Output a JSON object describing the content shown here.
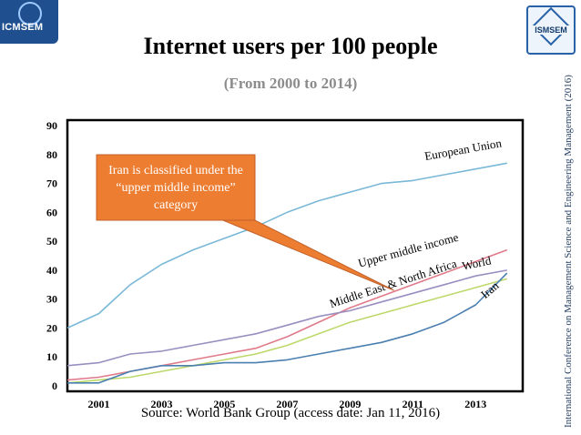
{
  "header": {
    "title": "Internet users per 100 people",
    "subtitle": "(From 2000 to 2014)",
    "left_logo_text": "ICMSEM",
    "right_logo_text": "ISMSEM"
  },
  "side_note": "International Conference on Management Science and Engineering Management (2016)",
  "source": "Source: World Bank Group (access date: Jan 11, 2016)",
  "callout": {
    "text": "Iran is classified under the “upper middle income” category",
    "color": "#ed7d31"
  },
  "chart_data": {
    "type": "line",
    "title": "Internet users per 100 people",
    "subtitle": "(From 2000 to 2014)",
    "xlabel": "",
    "ylabel": "",
    "xlim": [
      2000,
      2014.5
    ],
    "ylim": [
      0,
      90
    ],
    "x_ticks": [
      2001,
      2003,
      2005,
      2007,
      2009,
      2011,
      2013
    ],
    "x_tick_labels": [
      "2001",
      "2003",
      "2005",
      "2007",
      "2009",
      "2011",
      "2013"
    ],
    "y_ticks": [
      0,
      10,
      20,
      30,
      40,
      50,
      60,
      70,
      80,
      90
    ],
    "y_tick_labels": [
      "0",
      "10",
      "20",
      "30",
      "40",
      "50",
      "60",
      "70",
      "80",
      "90"
    ],
    "grid": false,
    "legend": "inline labels at line ends",
    "x": [
      2000,
      2001,
      2002,
      2003,
      2004,
      2005,
      2006,
      2007,
      2008,
      2009,
      2010,
      2011,
      2012,
      2013,
      2014
    ],
    "series": [
      {
        "name": "European Union",
        "color": "#7ab8d8",
        "values": [
          20,
          25,
          35,
          42,
          47,
          51,
          55,
          60,
          64,
          67,
          70,
          71,
          73,
          75,
          77
        ]
      },
      {
        "name": "Upper middle income",
        "color": "#e07a8a",
        "values": [
          2,
          3,
          5,
          7,
          9,
          11,
          13,
          17,
          22,
          27,
          31,
          35,
          39,
          43,
          47
        ]
      },
      {
        "name": "World",
        "color": "#9a8fc0",
        "values": [
          7,
          8,
          11,
          12,
          14,
          16,
          18,
          21,
          24,
          26,
          29,
          32,
          35,
          38,
          40
        ]
      },
      {
        "name": "Middle East & North Africa",
        "color": "#bcd96a",
        "values": [
          1,
          2,
          3,
          5,
          7,
          9,
          11,
          14,
          18,
          22,
          25,
          28,
          31,
          34,
          37
        ]
      },
      {
        "name": "Iran",
        "color": "#4a7fb0",
        "values": [
          1,
          1,
          5,
          7,
          7,
          8,
          8,
          9,
          11,
          13,
          15,
          18,
          22,
          28,
          39
        ]
      }
    ],
    "annotations": [
      "Iran is classified under the “upper middle income” category"
    ]
  }
}
